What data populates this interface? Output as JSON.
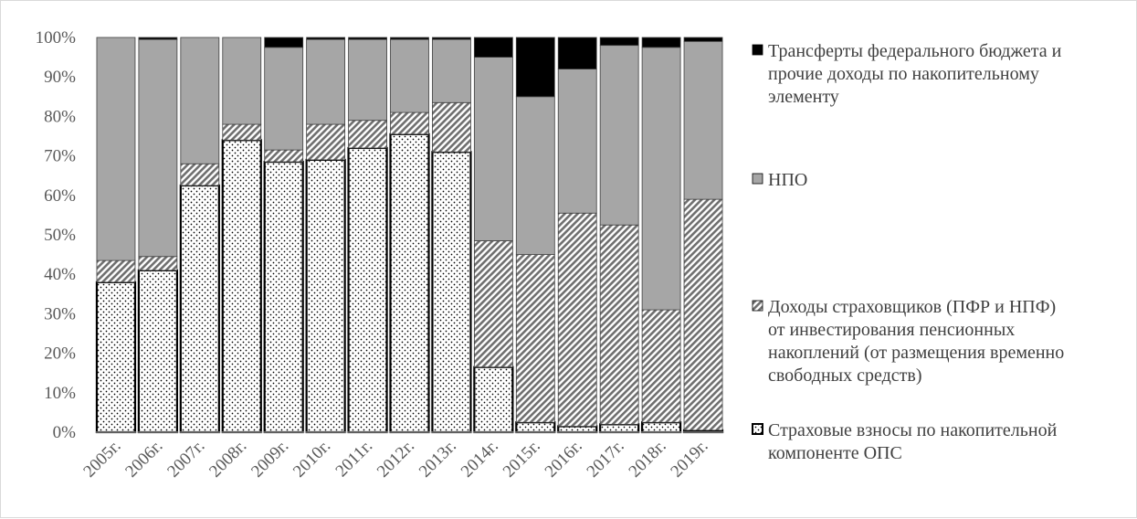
{
  "chart_data": {
    "type": "bar",
    "stacked": true,
    "percent": true,
    "categories": [
      "2005г.",
      "2006г.",
      "2007г.",
      "2008г.",
      "2009г.",
      "2010г.",
      "2011г.",
      "2012г.",
      "2013г.",
      "2014г.",
      "2015г.",
      "2016г.",
      "2017г.",
      "2018г.",
      "2019г."
    ],
    "yticks": [
      "0%",
      "10%",
      "20%",
      "30%",
      "40%",
      "50%",
      "60%",
      "70%",
      "80%",
      "90%",
      "100%"
    ],
    "ylim": [
      0,
      100
    ],
    "series": [
      {
        "name": "Страховые взносы по накопительной компоненте ОПС",
        "pattern": "dots",
        "color": "#ffffff",
        "values": [
          38,
          41,
          62.5,
          74,
          68.5,
          69,
          72,
          75.5,
          71,
          16.5,
          2.5,
          1.5,
          2,
          2.5,
          0.5
        ]
      },
      {
        "name": "Доходы страховщиков (ПФР и НПФ) от инвестирования пенсионных накоплений (от размещения временно свободных средств)",
        "pattern": "hatch",
        "color": "#7f7f7f",
        "values": [
          5.5,
          3.5,
          5.5,
          4,
          3,
          9,
          7,
          5.5,
          12.5,
          32,
          42.5,
          54,
          50.5,
          28.5,
          58.5
        ]
      },
      {
        "name": "НПО",
        "pattern": "solid",
        "color": "#a6a6a6",
        "values": [
          56.5,
          55,
          32,
          22,
          26,
          21.5,
          20.5,
          18.5,
          16,
          46.5,
          40,
          36.5,
          45.5,
          66.5,
          40
        ]
      },
      {
        "name": "Трансферты федерального бюджета и прочие доходы по накопительному элементу",
        "pattern": "solid",
        "color": "#000000",
        "values": [
          0,
          0.5,
          0,
          0,
          2.5,
          0.5,
          0.5,
          0.5,
          0.5,
          5,
          15,
          8,
          2,
          2.5,
          1
        ]
      }
    ],
    "legend": {
      "position": "right",
      "entries": [
        {
          "series": 3,
          "lines": [
            "Трансферты федерального бюджета и",
            "прочие доходы по накопительному",
            "элементу"
          ]
        },
        {
          "series": 2,
          "lines": [
            "НПО"
          ]
        },
        {
          "series": 1,
          "lines": [
            "Доходы страховщиков (ПФР и НПФ)",
            "от инвестирования пенсионных",
            "накоплений (от размещения временно",
            "свободных средств)"
          ]
        },
        {
          "series": 0,
          "lines": [
            "Страховые взносы по накопительной",
            "компоненте ОПС"
          ]
        }
      ]
    },
    "grid": false,
    "title": "",
    "xlabel": "",
    "ylabel": ""
  }
}
